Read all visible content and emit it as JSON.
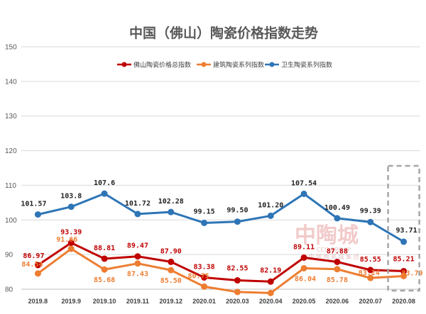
{
  "chart_data": {
    "type": "line",
    "title": "中国（佛山）陶瓷价格指数走势",
    "categories": [
      "2019.8",
      "2019.9",
      "2019.10",
      "2019.11",
      "2019.12",
      "2020.01",
      "2020.03",
      "2020.04",
      "2020.05",
      "2020.06",
      "2020.07",
      "2020.08"
    ],
    "ylim": [
      80,
      150
    ],
    "yticks": [
      80,
      90,
      100,
      110,
      120,
      130,
      140,
      150
    ],
    "grid": true,
    "legend_position": "top",
    "series": [
      {
        "name": "佛山陶瓷价格总指数",
        "color": "#c00000",
        "values": [
          86.97,
          93.39,
          88.81,
          89.47,
          87.9,
          83.38,
          82.55,
          82.19,
          89.11,
          87.88,
          85.55,
          85.21
        ],
        "labels": [
          "86.97",
          "93.39",
          "88.81",
          "89.47",
          "87.90",
          "83.38",
          "82.55",
          "82.19",
          "89.11",
          "87.88",
          "85.55",
          "85.21"
        ]
      },
      {
        "name": "建筑陶瓷系列指数",
        "color": "#ed7d31",
        "values": [
          84.54,
          91.66,
          85.68,
          87.43,
          85.5,
          80.75,
          79.2,
          78.9,
          86.04,
          85.78,
          83.24,
          83.79
        ],
        "labels": [
          "84.54",
          "91.66",
          "85.68",
          "87.43",
          "85.50",
          "80.75",
          "",
          "",
          "86.04",
          "85.78",
          "83.24",
          "83.79"
        ]
      },
      {
        "name": "卫生陶瓷系列指数",
        "color": "#2e75b6",
        "values": [
          101.57,
          103.8,
          107.6,
          101.72,
          102.28,
          99.15,
          99.5,
          101.2,
          107.54,
          100.49,
          99.39,
          93.71
        ],
        "labels": [
          "101.57",
          "103.8",
          "107.6",
          "101.72",
          "102.28",
          "99.15",
          "99.50",
          "101.20",
          "107.54",
          "100.49",
          "99.39",
          "93.71"
        ]
      }
    ],
    "highlight_category": "2020.08"
  },
  "watermark": {
    "text": "中陶城",
    "sub": "CCC GROUP",
    "sub2": "中 国 陶 瓷 城 集 团"
  }
}
